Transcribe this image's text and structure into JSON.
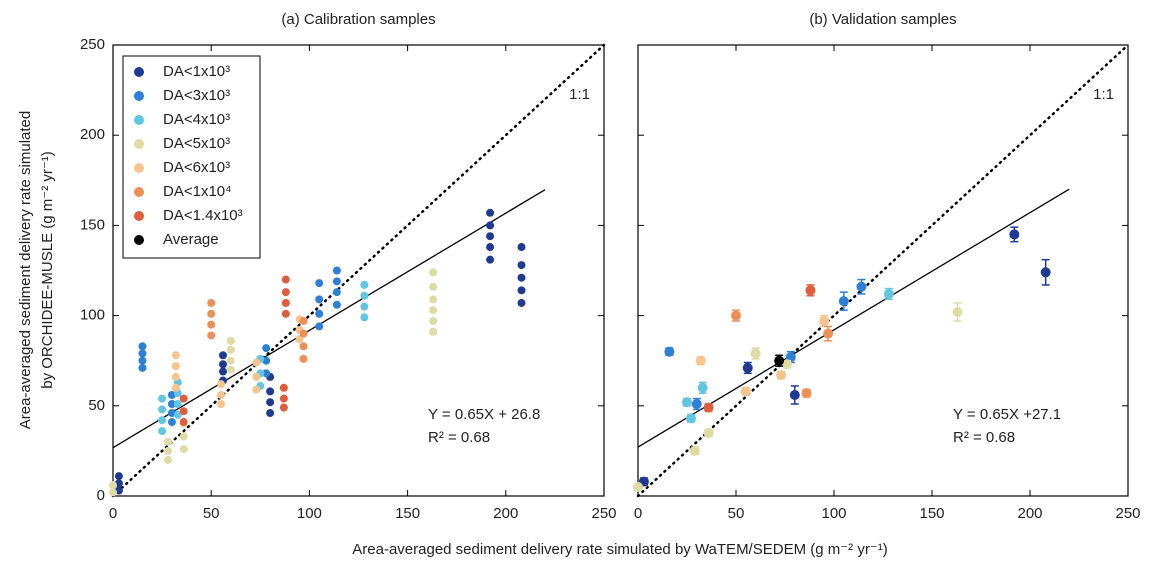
{
  "chart_data": [
    {
      "type": "scatter",
      "title": "(a) Calibration samples",
      "xlim": [
        0,
        250
      ],
      "ylim": [
        0,
        250
      ],
      "xticks": [
        0,
        50,
        100,
        150,
        200,
        250
      ],
      "yticks": [
        0,
        50,
        100,
        150,
        200,
        250
      ],
      "show_ytick_labels": true,
      "legend": "upper left",
      "identity_label": "1:1",
      "fit": {
        "slope": 0.65,
        "intercept": 26.8,
        "xmax": 220,
        "equation": "Y = 0.65X + 26.8",
        "r2": "R² = 0.68"
      },
      "series": [
        {
          "name": "DA<1x10³",
          "color": "#1f3a93",
          "x": [
            3,
            3,
            3,
            56,
            56,
            56,
            56,
            80,
            80,
            80,
            80,
            192,
            192,
            192,
            192,
            192,
            208,
            208,
            208,
            208,
            208
          ],
          "values": [
            3,
            7,
            11,
            64,
            69,
            73,
            78,
            46,
            52,
            58,
            66,
            131,
            138,
            144,
            150,
            157,
            107,
            114,
            121,
            128,
            138
          ]
        },
        {
          "name": "DA<3x10³",
          "color": "#2e7fd6",
          "x": [
            15,
            15,
            15,
            15,
            30,
            30,
            30,
            30,
            78,
            78,
            78,
            105,
            105,
            105,
            105,
            114,
            114,
            114,
            114
          ],
          "values": [
            71,
            75,
            79,
            83,
            41,
            46,
            51,
            56,
            68,
            75,
            82,
            94,
            101,
            109,
            118,
            106,
            113,
            119,
            125
          ]
        },
        {
          "name": "DA<4x10³",
          "color": "#62c6e3",
          "x": [
            25,
            25,
            25,
            25,
            33,
            33,
            33,
            33,
            75,
            75,
            75,
            128,
            128,
            128,
            128
          ],
          "values": [
            36,
            42,
            48,
            54,
            45,
            51,
            57,
            63,
            61,
            68,
            76,
            99,
            105,
            111,
            117
          ]
        },
        {
          "name": "DA<5x10³",
          "color": "#dedba4",
          "x": [
            0,
            0,
            28,
            28,
            28,
            36,
            36,
            36,
            60,
            60,
            60,
            60,
            163,
            163,
            163,
            163,
            163,
            163
          ],
          "values": [
            2,
            6,
            20,
            25,
            30,
            26,
            33,
            40,
            70,
            75,
            81,
            86,
            91,
            97,
            103,
            109,
            116,
            124
          ]
        },
        {
          "name": "DA<6x10³",
          "color": "#f6c48d",
          "x": [
            32,
            32,
            32,
            32,
            55,
            55,
            55,
            73,
            73,
            73,
            95,
            95,
            95
          ],
          "values": [
            60,
            66,
            72,
            78,
            51,
            56,
            62,
            59,
            66,
            74,
            87,
            92,
            98
          ]
        },
        {
          "name": "DA<1x10⁴",
          "color": "#ee8f5a",
          "x": [
            50,
            50,
            50,
            50,
            97,
            97,
            97,
            97
          ],
          "values": [
            89,
            95,
            101,
            107,
            76,
            83,
            90,
            97
          ]
        },
        {
          "name": "DA<1.4x10³",
          "color": "#de5d3c",
          "x": [
            36,
            36,
            36,
            88,
            88,
            88,
            88,
            87,
            87,
            87
          ],
          "values": [
            41,
            47,
            54,
            101,
            107,
            113,
            120,
            49,
            54,
            60
          ]
        },
        {
          "name": "Average",
          "color": "#000000",
          "x": [],
          "values": []
        }
      ]
    },
    {
      "type": "scatter",
      "title": "(b) Validation samples",
      "xlim": [
        0,
        250
      ],
      "ylim": [
        0,
        250
      ],
      "xticks": [
        0,
        50,
        100,
        150,
        200,
        250
      ],
      "yticks": [
        0,
        50,
        100,
        150,
        200,
        250
      ],
      "show_ytick_labels": false,
      "identity_label": "1:1",
      "fit": {
        "slope": 0.65,
        "intercept": 27.1,
        "xmax": 220,
        "equation": "Y = 0.65X +27.1",
        "r2": "R² = 0.68"
      },
      "series": [
        {
          "color": "#1f3a93",
          "x": [
            3,
            56,
            80,
            192,
            208
          ],
          "values": [
            8,
            71,
            56,
            145,
            124
          ],
          "errors": [
            2,
            3,
            5,
            4,
            7
          ]
        },
        {
          "color": "#2e7fd6",
          "x": [
            16,
            30,
            105,
            114,
            78
          ],
          "values": [
            80,
            51,
            108,
            116,
            77
          ],
          "errors": [
            2,
            3,
            5,
            4,
            3
          ]
        },
        {
          "color": "#62c6e3",
          "x": [
            25,
            33,
            27,
            128
          ],
          "values": [
            52,
            60,
            43,
            112
          ],
          "errors": [
            2,
            3,
            2,
            3
          ]
        },
        {
          "color": "#dedba4",
          "x": [
            0,
            29,
            36,
            60,
            163,
            76
          ],
          "values": [
            5,
            25,
            35,
            79,
            102,
            73
          ],
          "errors": [
            1,
            2,
            2,
            3,
            5,
            2
          ]
        },
        {
          "color": "#f6c48d",
          "x": [
            32,
            55,
            73,
            95
          ],
          "values": [
            75,
            58,
            67,
            97
          ],
          "errors": [
            2,
            2,
            2,
            3
          ]
        },
        {
          "color": "#ee8f5a",
          "x": [
            50,
            97,
            86
          ],
          "values": [
            100,
            90,
            57
          ],
          "errors": [
            3,
            4,
            2
          ]
        },
        {
          "color": "#de5d3c",
          "x": [
            36,
            88
          ],
          "values": [
            49,
            114
          ],
          "errors": [
            2,
            3
          ]
        },
        {
          "color": "#000000",
          "x": [
            72
          ],
          "values": [
            75
          ],
          "errors": [
            3
          ]
        }
      ]
    }
  ],
  "xlabel": "Area-averaged sediment delivery rate simulated by WaTEM/SEDEM (g m⁻² yr⁻¹)",
  "ylabel": [
    "Area-averaged sediment delivery rate simulated",
    "by ORCHIDEE-MUSLE (g m⁻² yr⁻¹)"
  ]
}
